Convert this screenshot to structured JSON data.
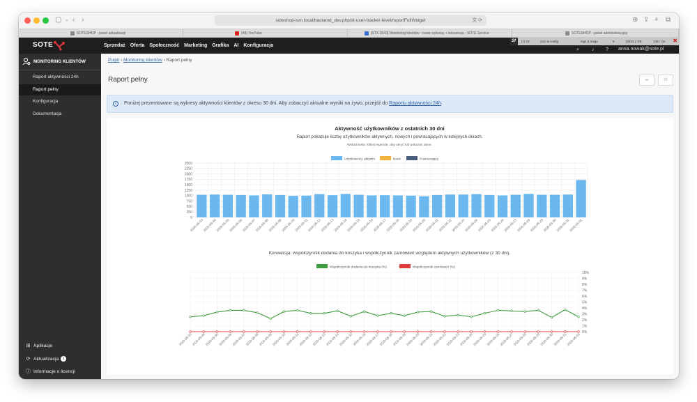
{
  "browser": {
    "url": "soteshop-svn.local/backend_dev.php/st-user-tracker-level/reportFullWidget",
    "url_right": "文 ⟳",
    "tabs": [
      {
        "label": "SOTESHOP - panel aktualizacji",
        "color": "#8a8a8a"
      },
      {
        "label": "(48) YouTube",
        "color": "#e02020"
      },
      {
        "label": "[STX-3543] Monitoring klientów - nowe wykresy + konwersja - SOTE Service",
        "color": "#3b6fd4"
      },
      {
        "label": "SOTESHOP - panel administracyjny",
        "color": "#8a8a8a"
      }
    ]
  },
  "debug_bar": {
    "logo": "Sf",
    "items": [
      "1.0.19",
      "vars & config",
      "logs & msgs",
      "6",
      "18403.2 KB",
      "1361 ms"
    ],
    "close": "✕"
  },
  "topnav": {
    "logo": "SOTE",
    "menu": [
      "Sprzedaż",
      "Oferta",
      "Społeczność",
      "Marketing",
      "Grafika",
      "AI",
      "Konfiguracja"
    ],
    "user": "anna.nowak@sote.pl",
    "icons": [
      "search-icon",
      "bell-icon",
      "help-icon"
    ]
  },
  "sidebar": {
    "title": "MONITORING KLIENTÓW",
    "items": [
      {
        "label": "Raport aktywności 24h",
        "active": false
      },
      {
        "label": "Raport pełny",
        "active": true
      },
      {
        "label": "Konfiguracja",
        "active": false
      },
      {
        "label": "Dokumentacja",
        "active": false
      }
    ],
    "bottom": [
      {
        "label": "Aplikacje",
        "icon": "grid-icon"
      },
      {
        "label": "Aktualizacja",
        "icon": "refresh-icon",
        "badge": "1"
      },
      {
        "label": "Informacje o licencji",
        "icon": "info-icon"
      }
    ]
  },
  "breadcrumb": {
    "root": "Pulpit",
    "parent": "Monitoring klientów",
    "current": "Raport pełny",
    "sep": "›"
  },
  "page": {
    "title": "Raport pełny",
    "btn1": "↔",
    "btn2": "☆"
  },
  "alert": {
    "text": "Poniżej prezentowane są wykresy aktywności klientów z okresu 30 dni. Aby zobaczyć aktualne wyniki na żywo, przejdź do",
    "link": "Raportu aktywności 24h",
    "tail": ".",
    "icon": "info-icon"
  },
  "chart_data": [
    {
      "type": "bar",
      "title": "Aktywność użytkowników z ostatnich 30 dni",
      "subtitle": "Raport pokazuje liczbę użytkowników aktywnych, nowych i powracających w kolejnych dniach.",
      "hint": "Wskazówka: kliknij legendę, aby ukryć lub pokazać dane.",
      "legend_position": "top",
      "grid": true,
      "ylim": [
        0,
        2500
      ],
      "yticks": [
        0,
        250,
        500,
        750,
        1000,
        1250,
        1500,
        1750,
        2000,
        2250,
        2500
      ],
      "categories": [
        "2026-05-03",
        "2026-05-04",
        "2026-05-05",
        "2026-05-06",
        "2026-05-07",
        "2026-05-08",
        "2026-05-09",
        "2026-05-10",
        "2026-05-11",
        "2026-05-12",
        "2026-05-13",
        "2026-05-14",
        "2026-05-15",
        "2026-05-16",
        "2026-05-17",
        "2026-05-18",
        "2026-05-19",
        "2026-05-20",
        "2026-05-21",
        "2026-05-22",
        "2026-05-23",
        "2026-05-24",
        "2026-05-25",
        "2026-05-26",
        "2026-05-27",
        "2026-05-28",
        "2026-05-29",
        "2026-05-30",
        "2026-05-31",
        "2026-06-01"
      ],
      "series": [
        {
          "name": "Użytkownicy aktywni",
          "color": "#6ab8ee",
          "values": [
            1040,
            1050,
            1040,
            1030,
            1010,
            1060,
            1030,
            990,
            1000,
            1070,
            1020,
            1080,
            1040,
            1010,
            1020,
            1010,
            1000,
            970,
            1030,
            1050,
            1050,
            1070,
            1030,
            1010,
            1040,
            1080,
            1040,
            1040,
            1050,
            1720
          ]
        },
        {
          "name": "Nowi",
          "color": "#f0b43c",
          "values": [
            0,
            0,
            0,
            0,
            0,
            0,
            0,
            0,
            0,
            0,
            0,
            0,
            0,
            0,
            0,
            0,
            0,
            0,
            0,
            0,
            0,
            0,
            0,
            0,
            0,
            0,
            0,
            0,
            0,
            0
          ]
        },
        {
          "name": "Powracający",
          "color": "#4a5f7e",
          "values": [
            0,
            0,
            0,
            0,
            0,
            0,
            0,
            0,
            0,
            0,
            0,
            0,
            0,
            0,
            0,
            0,
            0,
            0,
            0,
            0,
            0,
            0,
            0,
            0,
            0,
            0,
            0,
            0,
            0,
            0
          ]
        }
      ]
    },
    {
      "type": "line",
      "title": "Konwersja: współczynnik dodania do koszyka i współczynnik zamówień względem aktywnych użytkowników (z 30 dni).",
      "legend_position": "top",
      "grid": true,
      "ylim": [
        0,
        10
      ],
      "y_axis_side": "right",
      "yticks": [
        "0%",
        "1%",
        "2%",
        "3%",
        "4%",
        "5%",
        "6%",
        "7%",
        "8%",
        "9%",
        "10%"
      ],
      "categories": [
        "2026-05-03",
        "2026-05-04",
        "2026-05-05",
        "2026-05-06",
        "2026-05-07",
        "2026-05-08",
        "2026-05-09",
        "2026-05-10",
        "2026-05-11",
        "2026-05-12",
        "2026-05-13",
        "2026-05-14",
        "2026-05-15",
        "2026-05-16",
        "2026-05-17",
        "2026-05-18",
        "2026-05-19",
        "2026-05-20",
        "2026-05-21",
        "2026-05-22",
        "2026-05-23",
        "2026-05-24",
        "2026-05-25",
        "2026-05-26",
        "2026-05-27",
        "2026-05-28",
        "2026-05-29",
        "2026-05-30",
        "2026-05-31",
        "2026-06-01"
      ],
      "series": [
        {
          "name": "Współczynnik dodania do koszyka (%)",
          "color": "#3d9a3d",
          "values": [
            2.5,
            2.7,
            3.3,
            3.6,
            3.6,
            3.2,
            2.2,
            3.4,
            3.6,
            3.1,
            3.1,
            3.5,
            2.6,
            3.4,
            2.7,
            3.1,
            2.7,
            3.3,
            3.4,
            2.6,
            2.8,
            2.5,
            3.1,
            3.6,
            3.5,
            3.4,
            3.6,
            2.4,
            3.7,
            2.5
          ]
        },
        {
          "name": "Współczynnik zamówień (%)",
          "color": "#e03b3b",
          "values": [
            0,
            0,
            0,
            0,
            0,
            0,
            0,
            0,
            0,
            0,
            0,
            0,
            0,
            0,
            0,
            0,
            0,
            0,
            0,
            0,
            0,
            0,
            0,
            0,
            0,
            0,
            0,
            0,
            0,
            0
          ]
        }
      ]
    }
  ]
}
